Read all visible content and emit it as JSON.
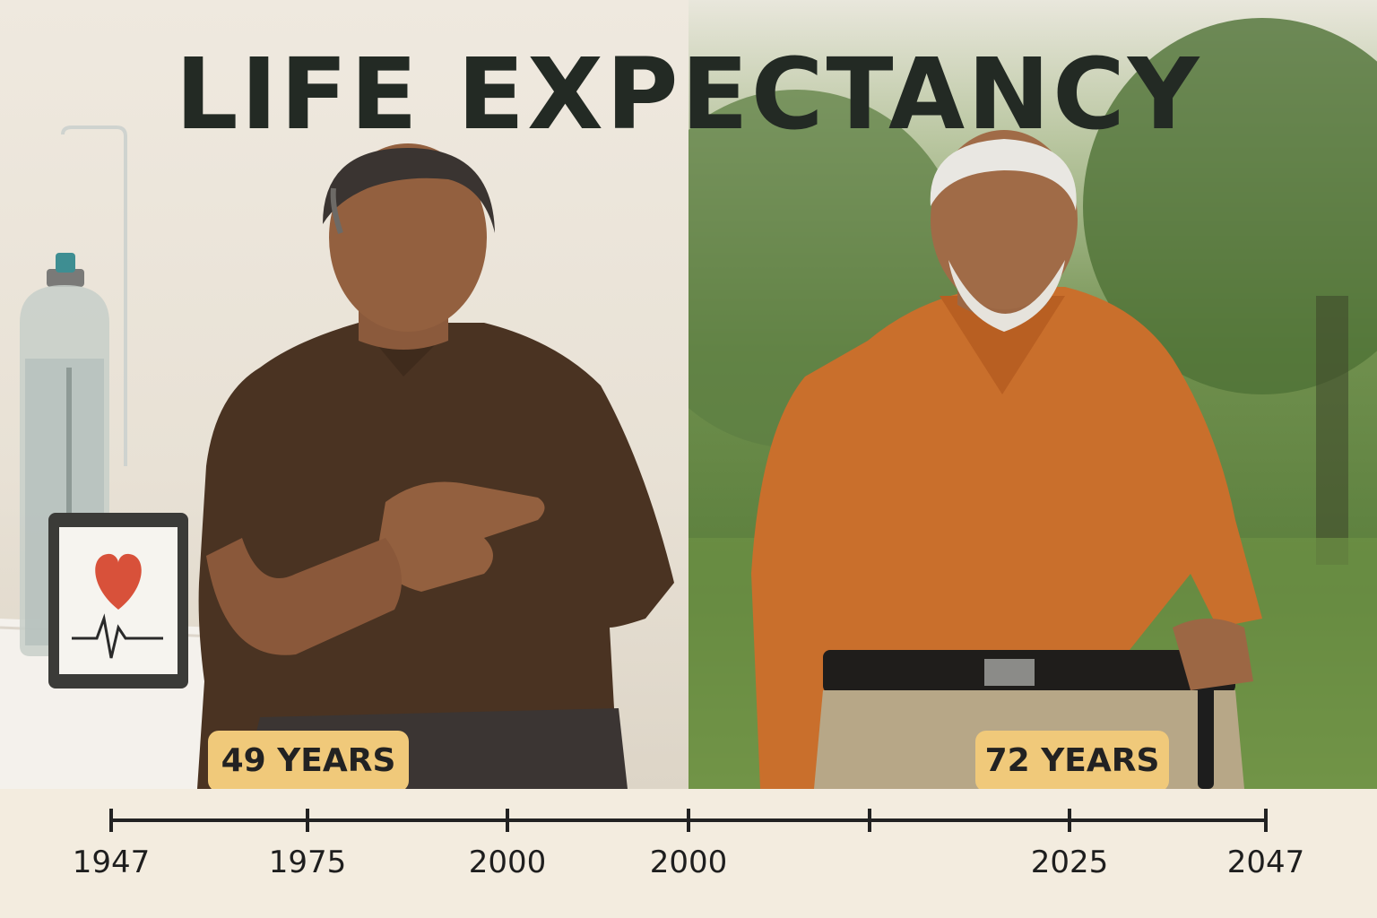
{
  "title": "LIFE EXPECTANCY",
  "left_callout": "49 YEARS",
  "right_callout": "72 YEARS",
  "timeline": {
    "tick_labels": [
      "1947",
      "1975",
      "2000",
      "2000",
      "",
      "2025",
      "2047"
    ]
  },
  "left_scene": {
    "description_icons": [
      "oxygen-cylinder-icon",
      "heart-monitor-icon"
    ],
    "shirt_color": "#4a3322"
  },
  "right_scene": {
    "shirt_color": "#c96f2c"
  }
}
